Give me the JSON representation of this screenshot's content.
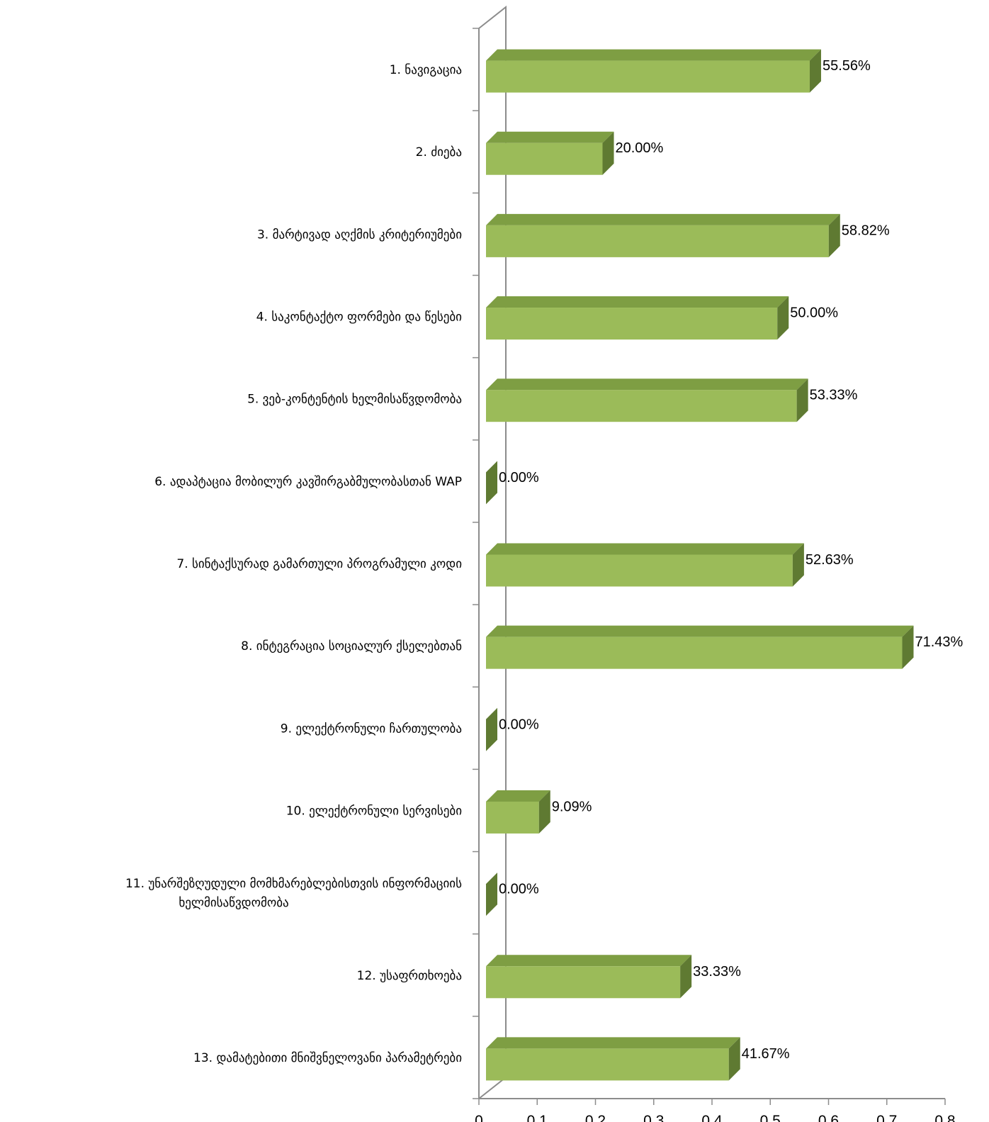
{
  "chart_data": {
    "type": "bar",
    "orientation": "horizontal",
    "style": "3d",
    "categories": [
      "1. ნავიგაცია",
      "2. ძიება",
      "3. მარტივად აღქმის კრიტერიუმები",
      "4. საკონტაქტო ფორმები და წესები",
      "5. ვებ-კონტენტის ხელმისაწვდომობა",
      "6. ადაპტაცია მობილურ კავშირგაბმულობასთან WAP",
      "7. სინტაქსურად გამართული პროგრამული კოდი",
      "8. ინტეგრაცია სოციალურ ქსელებთან",
      "9. ელექტრონული ჩართულობა",
      "10. ელექტრონული სერვისები",
      "11. უნარშეზღუდული მომხმარებლებისთვის ინფორმაციის ხელმისაწვდომობა",
      "12. უსაფრთხოება",
      "13. დამატებითი მნიშვნელოვანი პარამეტრები"
    ],
    "category_label_lines": [
      [
        "1. ნავიგაცია"
      ],
      [
        "2. ძიება"
      ],
      [
        "3. მარტივად აღქმის კრიტერიუმები"
      ],
      [
        "4. საკონტაქტო ფორმები და წესები"
      ],
      [
        "5. ვებ-კონტენტის ხელმისაწვდომობა"
      ],
      [
        "6. ადაპტაცია მობილურ კავშირგაბმულობასთან WAP"
      ],
      [
        "7. სინტაქსურად გამართული პროგრამული კოდი"
      ],
      [
        "8. ინტეგრაცია სოციალურ ქსელებთან"
      ],
      [
        "9. ელექტრონული ჩართულობა"
      ],
      [
        "10. ელექტრონული სერვისები"
      ],
      [
        "11. უნარშეზღუდული მომხმარებლებისთვის ინფორმაციის",
        "ხელმისაწვდომობა"
      ],
      [
        "12. უსაფრთხოება"
      ],
      [
        "13. დამატებითი მნიშვნელოვანი პარამეტრები"
      ]
    ],
    "values": [
      0.5556,
      0.2,
      0.5882,
      0.5,
      0.5333,
      0.0,
      0.5263,
      0.7143,
      0.0,
      0.0909,
      0.0,
      0.3333,
      0.4167
    ],
    "data_labels": [
      "55.56%",
      "20.00%",
      "58.82%",
      "50.00%",
      "53.33%",
      "0.00%",
      "52.63%",
      "71.43%",
      "0.00%",
      "9.09%",
      "0.00%",
      "33.33%",
      "41.67%"
    ],
    "x_ticks": [
      "0",
      "0.1",
      "0.2",
      "0.3",
      "0.4",
      "0.5",
      "0.6",
      "0.7",
      "0.8"
    ],
    "xlim": [
      0,
      0.8
    ],
    "title": "",
    "xlabel": "",
    "ylabel": "",
    "grid": false,
    "legend": "none",
    "colors": {
      "bar_front": "#9bbb59",
      "bar_top": "#7e9e43",
      "bar_side": "#5f7a32",
      "axis": "#8c8c8c",
      "text": "#000000"
    }
  }
}
